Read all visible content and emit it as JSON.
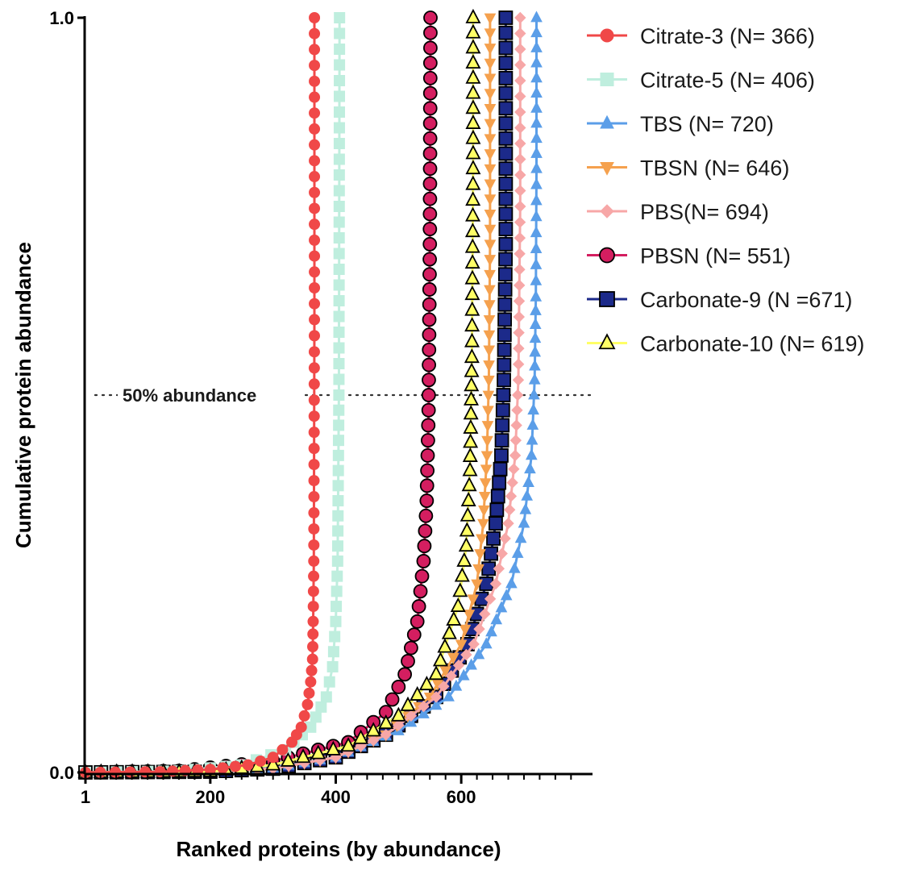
{
  "chart_data": {
    "type": "line",
    "title": "",
    "xlabel": "Ranked proteins (by abundance)",
    "ylabel": "Cumulative protein abundance",
    "xlim": [
      1,
      790
    ],
    "ylim": [
      0,
      1
    ],
    "x_ticks": [
      {
        "value": 1,
        "label": "1"
      },
      {
        "value": 200,
        "label": "200"
      },
      {
        "value": 400,
        "label": "400"
      },
      {
        "value": 600,
        "label": "600"
      }
    ],
    "y_ticks": [
      {
        "value": 0,
        "label": "0.0"
      },
      {
        "value": 1,
        "label": "1.0"
      }
    ],
    "reference_line": {
      "y": 0.5,
      "label": "50% abundance"
    },
    "legend_position": "top-right",
    "grid": false,
    "series": [
      {
        "name": "Citrate-3 (N= 366)",
        "n": 366,
        "color": "#f04848",
        "marker": "circle",
        "points": [
          [
            1,
            0
          ],
          [
            120,
            0.001
          ],
          [
            200,
            0.004
          ],
          [
            260,
            0.01
          ],
          [
            300,
            0.02
          ],
          [
            330,
            0.04
          ],
          [
            345,
            0.06
          ],
          [
            355,
            0.09
          ],
          [
            360,
            0.12
          ],
          [
            363,
            0.15
          ],
          [
            364,
            0.2
          ],
          [
            365,
            0.28
          ],
          [
            366,
            0.6
          ],
          [
            366,
            1.0
          ]
        ]
      },
      {
        "name": "Citrate-5 (N= 406)",
        "n": 406,
        "color": "#bfeede",
        "marker": "square",
        "points": [
          [
            1,
            0
          ],
          [
            150,
            0.002
          ],
          [
            250,
            0.01
          ],
          [
            320,
            0.03
          ],
          [
            360,
            0.06
          ],
          [
            385,
            0.1
          ],
          [
            395,
            0.14
          ],
          [
            400,
            0.2
          ],
          [
            403,
            0.28
          ],
          [
            405,
            0.5
          ],
          [
            406,
            1.0
          ]
        ]
      },
      {
        "name": "TBS (N= 720)",
        "n": 720,
        "color": "#5b9ee8",
        "marker": "triangle-up",
        "points": [
          [
            1,
            0
          ],
          [
            200,
            0.001
          ],
          [
            300,
            0.006
          ],
          [
            400,
            0.02
          ],
          [
            500,
            0.055
          ],
          [
            580,
            0.1
          ],
          [
            640,
            0.17
          ],
          [
            680,
            0.25
          ],
          [
            700,
            0.33
          ],
          [
            712,
            0.42
          ],
          [
            717,
            0.52
          ],
          [
            719,
            0.63
          ],
          [
            720,
            0.8
          ],
          [
            720,
            1.0
          ]
        ]
      },
      {
        "name": "TBSN (N= 646)",
        "n": 646,
        "color": "#f5a14e",
        "marker": "triangle-down",
        "points": [
          [
            1,
            0
          ],
          [
            200,
            0.001
          ],
          [
            300,
            0.005
          ],
          [
            400,
            0.02
          ],
          [
            480,
            0.05
          ],
          [
            550,
            0.1
          ],
          [
            600,
            0.17
          ],
          [
            625,
            0.25
          ],
          [
            635,
            0.33
          ],
          [
            641,
            0.42
          ],
          [
            644,
            0.52
          ],
          [
            646,
            0.7
          ],
          [
            646,
            1.0
          ]
        ]
      },
      {
        "name": "PBS(N= 694)",
        "n": 694,
        "color": "#f7a7a7",
        "marker": "diamond",
        "points": [
          [
            1,
            0
          ],
          [
            200,
            0.001
          ],
          [
            300,
            0.005
          ],
          [
            400,
            0.02
          ],
          [
            480,
            0.05
          ],
          [
            560,
            0.1
          ],
          [
            620,
            0.17
          ],
          [
            655,
            0.25
          ],
          [
            675,
            0.33
          ],
          [
            686,
            0.42
          ],
          [
            691,
            0.52
          ],
          [
            694,
            0.75
          ],
          [
            694,
            1.0
          ]
        ]
      },
      {
        "name": "PBSN (N= 551)",
        "n": 551,
        "color": "#d41e60",
        "marker": "circle",
        "points": [
          [
            1,
            0
          ],
          [
            150,
            0.002
          ],
          [
            300,
            0.015
          ],
          [
            420,
            0.04
          ],
          [
            480,
            0.08
          ],
          [
            510,
            0.13
          ],
          [
            530,
            0.2
          ],
          [
            540,
            0.28
          ],
          [
            545,
            0.36
          ],
          [
            548,
            0.48
          ],
          [
            550,
            0.7
          ],
          [
            551,
            1.0
          ]
        ]
      },
      {
        "name": "Carbonate-9 (N =671)",
        "n": 671,
        "color": "#1c2a8a",
        "marker": "square",
        "points": [
          [
            1,
            0
          ],
          [
            200,
            0.001
          ],
          [
            300,
            0.005
          ],
          [
            400,
            0.02
          ],
          [
            480,
            0.05
          ],
          [
            560,
            0.1
          ],
          [
            610,
            0.17
          ],
          [
            640,
            0.25
          ],
          [
            655,
            0.33
          ],
          [
            664,
            0.42
          ],
          [
            668,
            0.52
          ],
          [
            671,
            0.7
          ],
          [
            671,
            1.0
          ]
        ]
      },
      {
        "name": "Carbonate-10 (N= 619)",
        "n": 619,
        "color": "#ffff66",
        "marker": "triangle-up",
        "points": [
          [
            1,
            0
          ],
          [
            200,
            0.001
          ],
          [
            300,
            0.01
          ],
          [
            420,
            0.035
          ],
          [
            500,
            0.075
          ],
          [
            560,
            0.13
          ],
          [
            595,
            0.22
          ],
          [
            608,
            0.3
          ],
          [
            614,
            0.4
          ],
          [
            617,
            0.55
          ],
          [
            619,
            0.8
          ],
          [
            619,
            1.0
          ]
        ]
      }
    ]
  }
}
